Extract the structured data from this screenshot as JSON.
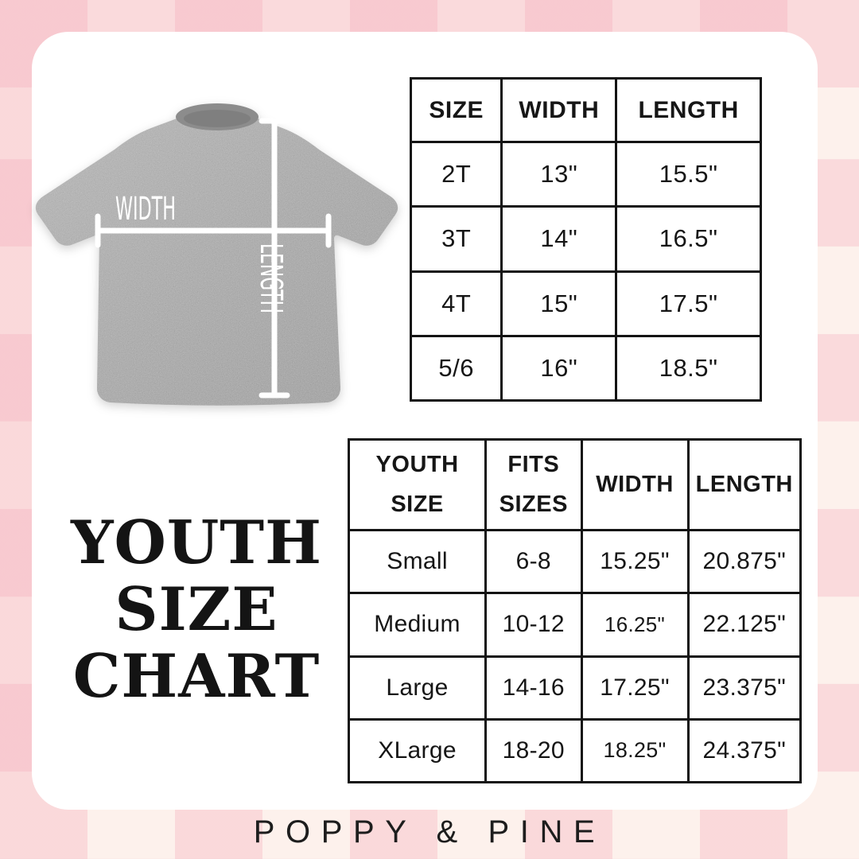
{
  "title": {
    "lines": [
      "YOUTH",
      "SIZE",
      "CHART"
    ]
  },
  "shirt_figure": {
    "width_label": "WIDTH",
    "length_label": "LENGTH"
  },
  "toddler_table": {
    "headers": [
      "SIZE",
      "WIDTH",
      "LENGTH"
    ],
    "rows": [
      [
        "2T",
        "13\"",
        "15.5\""
      ],
      [
        "3T",
        "14\"",
        "16.5\""
      ],
      [
        "4T",
        "15\"",
        "17.5\""
      ],
      [
        "5/6",
        "16\"",
        "18.5\""
      ]
    ]
  },
  "youth_table": {
    "headers": [
      "YOUTH SIZE",
      "FITS SIZES",
      "WIDTH",
      "LENGTH"
    ],
    "rows": [
      [
        "Small",
        "6-8",
        "15.25\"",
        "20.875\""
      ],
      [
        "Medium",
        "10-12",
        "16.25\"",
        "22.125\""
      ],
      [
        "Large",
        "14-16",
        "17.25\"",
        "23.375\""
      ],
      [
        "XLarge",
        "18-20",
        "18.25\"",
        "24.375\""
      ]
    ]
  },
  "footer": {
    "brand": "POPPY & PINE"
  },
  "colors": {
    "background_pink": "#f7c7cf",
    "background_cream": "#fdf1ec",
    "card_background": "#ffffff",
    "table_border": "#141414",
    "text": "#1a1a1a",
    "shirt_gray": "#9d9d9d",
    "measure_line": "#ffffff"
  }
}
